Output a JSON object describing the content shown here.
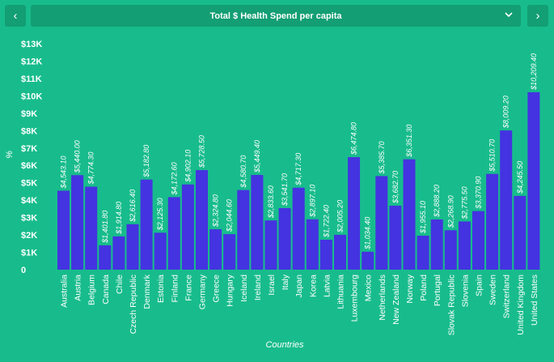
{
  "nav": {
    "prev_icon": "‹",
    "next_icon": "›"
  },
  "selector": {
    "selected": "Total $ Health Spend per capita",
    "icon": "chevron-down-icon"
  },
  "colors": {
    "background": "#18bc8c",
    "bar": "#4433e0",
    "control": "#139e73",
    "text": "#ffffff"
  },
  "chart_data": {
    "type": "bar",
    "title": "",
    "xlabel": "Countries",
    "ylabel": "%",
    "ylim": [
      0,
      13000
    ],
    "yticks": [
      {
        "value": 0,
        "label": "0"
      },
      {
        "value": 1000,
        "label": "$1K"
      },
      {
        "value": 2000,
        "label": "$2K"
      },
      {
        "value": 3000,
        "label": "$3K"
      },
      {
        "value": 4000,
        "label": "$4K"
      },
      {
        "value": 5000,
        "label": "$5K"
      },
      {
        "value": 6000,
        "label": "$6K"
      },
      {
        "value": 7000,
        "label": "$7K"
      },
      {
        "value": 8000,
        "label": "$8K"
      },
      {
        "value": 9000,
        "label": "$9K"
      },
      {
        "value": 10000,
        "label": "$10K"
      },
      {
        "value": 11000,
        "label": "$11K"
      },
      {
        "value": 12000,
        "label": "$12K"
      },
      {
        "value": 13000,
        "label": "$13K"
      }
    ],
    "grid": false,
    "categories": [
      "Australia",
      "Austria",
      "Belgium",
      "Canada",
      "Chile",
      "Czech Republic",
      "Denmark",
      "Estonia",
      "Finland",
      "France",
      "Germany",
      "Greece",
      "Hungary",
      "Iceland",
      "Ireland",
      "Israel",
      "Italy",
      "Japan",
      "Korea",
      "Latvia",
      "Lithuania",
      "Luxembourg",
      "Mexico",
      "Netherlands",
      "New Zealand",
      "Norway",
      "Poland",
      "Portugal",
      "Slovak Republic",
      "Slovenia",
      "Spain",
      "Sweden",
      "Switzerland",
      "United Kingdom",
      "United States"
    ],
    "values": [
      4543.1,
      5440.0,
      4774.3,
      1401.8,
      1914.8,
      2616.4,
      5182.8,
      2125.3,
      4172.6,
      4902.1,
      5728.5,
      2324.8,
      2044.6,
      4580.7,
      5449.4,
      2833.6,
      3541.7,
      4717.3,
      2897.1,
      1722.4,
      2005.2,
      6474.8,
      1034.4,
      5385.7,
      3682.7,
      6351.3,
      1955.1,
      2888.2,
      2268.9,
      2775.5,
      3370.9,
      5510.7,
      8009.2,
      4245.5,
      10209.4
    ],
    "labels": [
      "$4,543.10",
      "$5,440.00",
      "$4,774.30",
      "$1,401.80",
      "$1,914.80",
      "$2,616.40",
      "$5,182.80",
      "$2,125.30",
      "$4,172.60",
      "$4,902.10",
      "$5,728.50",
      "$2,324.80",
      "$2,044.60",
      "$4,580.70",
      "$5,449.40",
      "$2,833.60",
      "$3,541.70",
      "$4,717.30",
      "$2,897.10",
      "$1,722.40",
      "$2,005.20",
      "$6,474.80",
      "$1,034.40",
      "$5,385.70",
      "$3,682.70",
      "$6,351.30",
      "$1,955.10",
      "$2,888.20",
      "$2,268.90",
      "$2,775.50",
      "$3,370.90",
      "$5,510.70",
      "$8,009.20",
      "$4,245.50",
      "$10,209.40"
    ]
  }
}
